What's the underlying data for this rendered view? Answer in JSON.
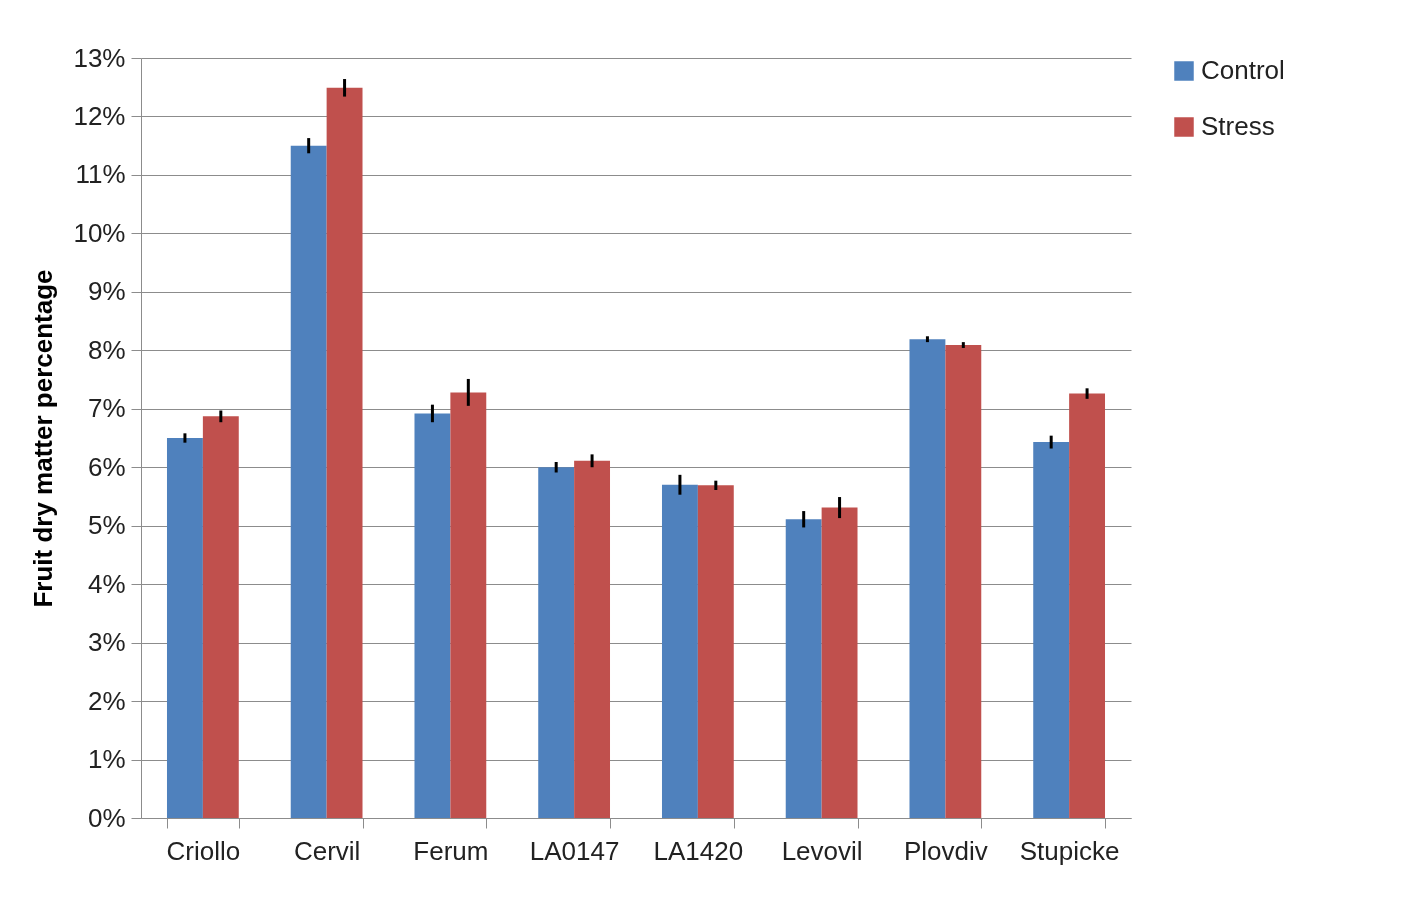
{
  "chart_data": {
    "type": "bar",
    "ylabel": "Fruit dry matter percentage",
    "categories": [
      "Criollo",
      "Cervil",
      "Ferum",
      "LA0147",
      "LA1420",
      "Levovil",
      "Plovdiv",
      "Stupicke"
    ],
    "series": [
      {
        "name": "Control",
        "color": "#4f81bd",
        "values": [
          6.5,
          11.5,
          6.92,
          6.0,
          5.7,
          5.11,
          8.19,
          6.43
        ],
        "errors": [
          0.08,
          0.13,
          0.15,
          0.09,
          0.17,
          0.14,
          0.05,
          0.11
        ]
      },
      {
        "name": "Stress",
        "color": "#c0504d",
        "values": [
          6.87,
          12.49,
          7.28,
          6.11,
          5.69,
          5.31,
          8.09,
          7.26
        ],
        "errors": [
          0.1,
          0.15,
          0.23,
          0.11,
          0.08,
          0.18,
          0.05,
          0.09
        ]
      }
    ],
    "ylim": [
      0,
      13
    ],
    "yticks": [
      {
        "value": 0,
        "label": "0%"
      },
      {
        "value": 1,
        "label": "1%"
      },
      {
        "value": 2,
        "label": "2%"
      },
      {
        "value": 3,
        "label": "3%"
      },
      {
        "value": 4,
        "label": "4%"
      },
      {
        "value": 5,
        "label": "5%"
      },
      {
        "value": 6,
        "label": "6%"
      },
      {
        "value": 7,
        "label": "7%"
      },
      {
        "value": 8,
        "label": "8%"
      },
      {
        "value": 9,
        "label": "9%"
      },
      {
        "value": 10,
        "label": "10%"
      },
      {
        "value": 11,
        "label": "11%"
      },
      {
        "value": 12,
        "label": "12%"
      },
      {
        "value": 13,
        "label": "13%"
      }
    ],
    "grid": "y",
    "legend": "right"
  }
}
